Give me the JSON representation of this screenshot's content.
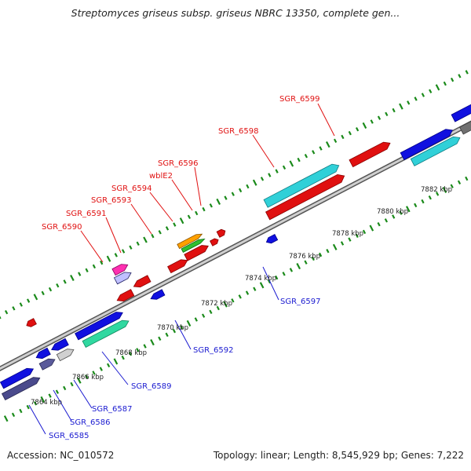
{
  "title": "Streptomyces griseus subsp. griseus NBRC 13350, complete gen...",
  "footer": {
    "accession": "Accession: NC_010572",
    "summary": "Topology: linear; Length: 8,545,929 bp; Genes: 7,222"
  },
  "colors": {
    "backbone": "#9a9a9a",
    "dots": "#1a8a1a",
    "forward_label": "#e01010",
    "reverse_label": "#1a1ad0"
  },
  "ticks": [
    "7864 kbp",
    "7866 kbp",
    "7868 kbp",
    "7870 kbp",
    "7872 kbp",
    "7874 kbp",
    "7876 kbp",
    "7878 kbp",
    "7880 kbp",
    "7882 kbp"
  ],
  "genes_forward": [
    {
      "label": "SGR_6590"
    },
    {
      "label": "SGR_6591"
    },
    {
      "label": "SGR_6593"
    },
    {
      "label": "SGR_6594"
    },
    {
      "label": "wblE2"
    },
    {
      "label": "SGR_6596"
    },
    {
      "label": "SGR_6598"
    },
    {
      "label": "SGR_6599"
    }
  ],
  "genes_reverse": [
    {
      "label": "SGR_6585"
    },
    {
      "label": "SGR_6586"
    },
    {
      "label": "SGR_6587"
    },
    {
      "label": "SGR_6589"
    },
    {
      "label": "SGR_6592"
    },
    {
      "label": "SGR_6597"
    }
  ]
}
